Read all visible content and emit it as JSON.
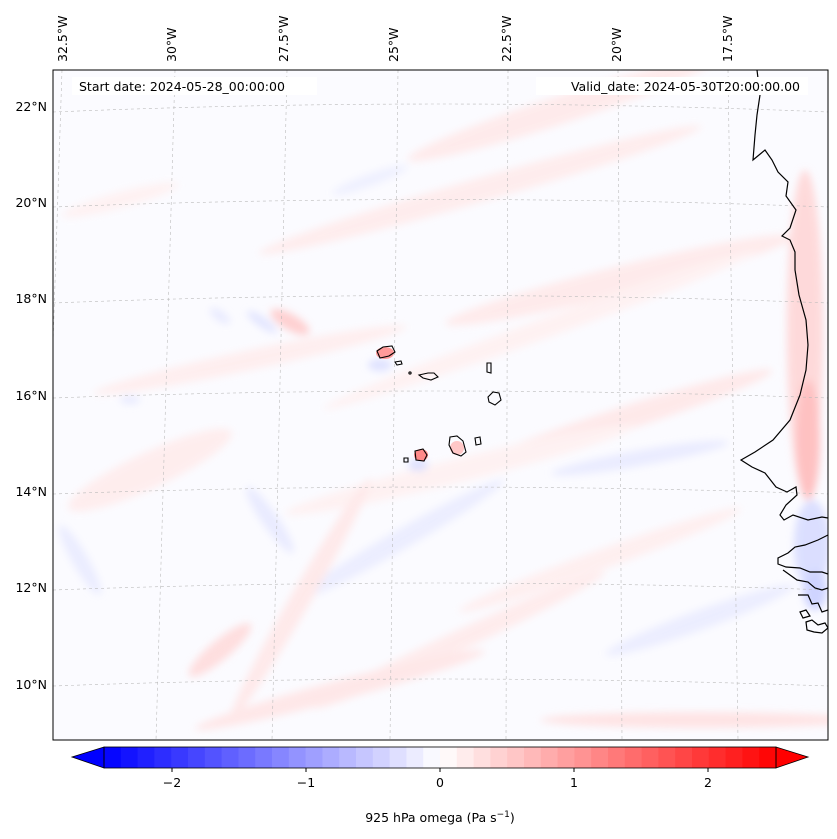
{
  "map": {
    "start_label": "Start date: 2024-05-28_00:00:00",
    "valid_label": "Valid_date: 2024-05-30T20:00:00.00",
    "lon_labels": [
      "32.5°W",
      "30°W",
      "27.5°W",
      "25°W",
      "22.5°W",
      "20°W",
      "17.5°W"
    ],
    "lat_labels": [
      "22°N",
      "20°N",
      "18°N",
      "16°N",
      "14°N",
      "12°N",
      "10°N"
    ],
    "gridlines": "dashed"
  },
  "colorbar": {
    "ticks": [
      "−2",
      "−1",
      "0",
      "1",
      "2"
    ],
    "label_main": "925 hPa omega (Pa s",
    "label_sup": "−1",
    "label_end": ")",
    "min": -2.6,
    "max": 2.6,
    "levels": 40,
    "color_negative": "#0000ff",
    "color_zero": "#ffffff",
    "color_positive": "#ff0000"
  }
}
